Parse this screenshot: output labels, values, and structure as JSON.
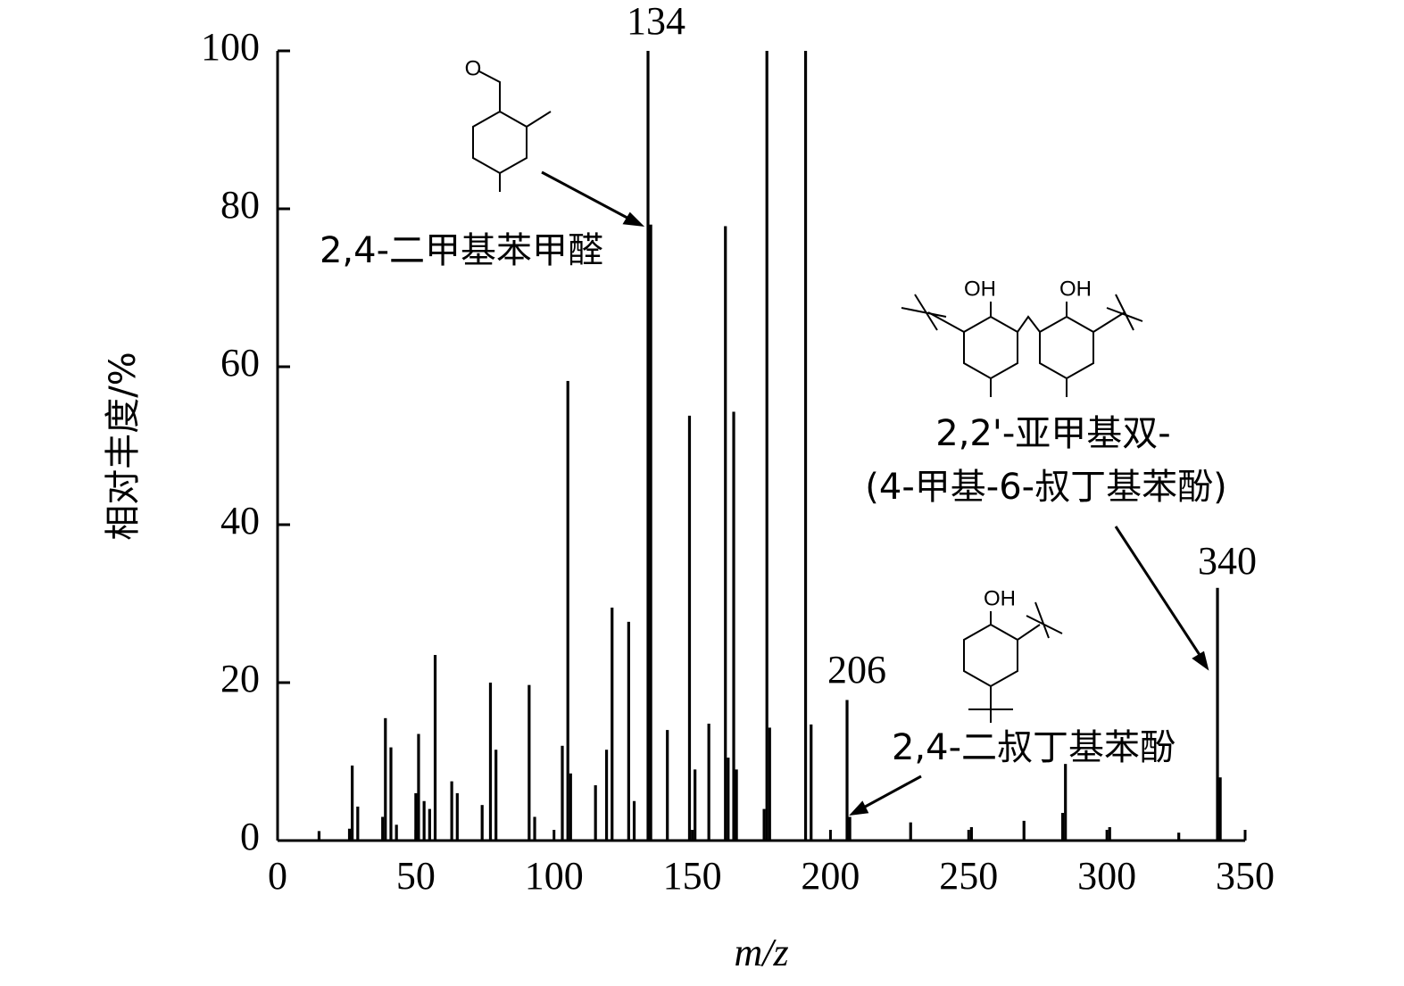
{
  "chart_data": {
    "type": "stick",
    "x_label": "m/z",
    "y_label": "相对丰度/%",
    "x": [
      15,
      26,
      27,
      29,
      38,
      39,
      41,
      43,
      50,
      51,
      53,
      55,
      57,
      63,
      65,
      74,
      77,
      79,
      91,
      93,
      103,
      105,
      106,
      115,
      119,
      121,
      127,
      129,
      134,
      135,
      141,
      149,
      151,
      156,
      162,
      163,
      165,
      166,
      176,
      177,
      178,
      191,
      193,
      206,
      207,
      229,
      251,
      270,
      284,
      285,
      301,
      326,
      340,
      341
    ],
    "values": [
      1.2,
      1.5,
      9.5,
      4.3,
      3,
      15.5,
      11.8,
      2,
      6,
      13.5,
      5,
      4,
      23.5,
      7.5,
      6,
      4.5,
      20,
      11.5,
      19.7,
      3,
      12,
      58.2,
      8.5,
      7,
      11.5,
      29.5,
      27.7,
      5,
      100,
      78,
      14,
      53.8,
      9,
      14.8,
      77.8,
      10.5,
      54.3,
      9,
      4,
      100,
      14.3,
      100,
      14.7,
      17.8,
      3,
      2.3,
      1.7,
      2.5,
      3.5,
      9.7,
      1.7,
      1,
      32,
      8
    ],
    "color": "#000000",
    "xlim": [
      0,
      350
    ],
    "xticks": [
      0,
      50,
      100,
      150,
      200,
      250,
      300,
      350
    ],
    "ylim": [
      0,
      100
    ],
    "yticks": [
      0,
      20,
      40,
      60,
      80,
      100
    ],
    "annotations": [
      "134",
      "206",
      "340",
      "2,4-二甲基苯甲醛",
      "2,2'-亚甲基双-",
      "(4-甲基-6-叔丁基苯酚)",
      "2,4-二叔丁基苯酚",
      "OH",
      "OH",
      "OH",
      "O"
    ]
  }
}
